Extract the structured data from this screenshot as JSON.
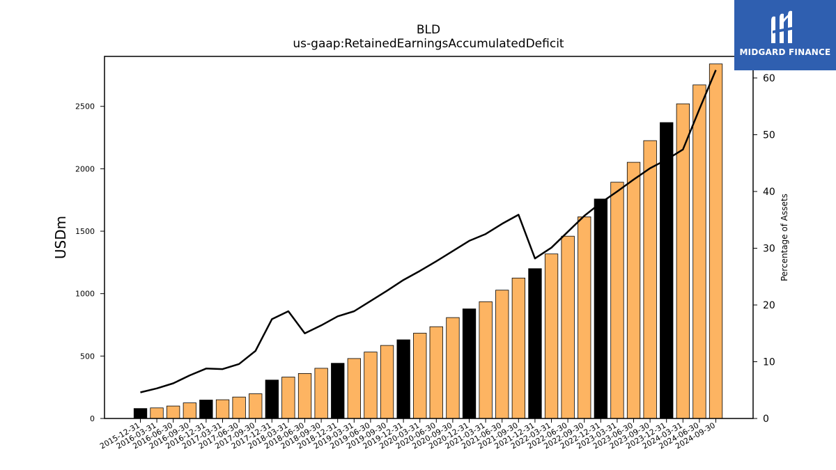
{
  "brand": {
    "name": "MIDGARD FINANCE",
    "color": "#2f5fb0",
    "icon": "midgard-logo-icon"
  },
  "chart_data": {
    "type": "bar",
    "title": "BLD",
    "subtitle": "us-gaap:RetainedEarningsAccumulatedDeficit",
    "ylabel": "USDm",
    "y2label": "Percentage of Assets",
    "ylim": [
      0,
      2900
    ],
    "y2lim": [
      0,
      63.8
    ],
    "yticks": [
      0,
      500,
      1000,
      1500,
      2000,
      2500
    ],
    "y2ticks": [
      0,
      10,
      20,
      30,
      40,
      50,
      60
    ],
    "grid": false,
    "colors": {
      "bar": "#fdb462",
      "bar_fy": "#000000",
      "line": "#000000"
    },
    "categories": [
      "2015-12-31",
      "2016-03-31",
      "2016-06-30",
      "2016-09-30",
      "2016-12-31",
      "2017-03-31",
      "2017-06-30",
      "2017-09-30",
      "2017-12-31",
      "2018-03-31",
      "2018-06-30",
      "2018-09-30",
      "2018-12-31",
      "2019-03-31",
      "2019-06-30",
      "2019-09-30",
      "2019-12-31",
      "2020-03-31",
      "2020-06-30",
      "2020-09-30",
      "2020-12-31",
      "2021-03-31",
      "2021-06-30",
      "2021-09-30",
      "2021-12-31",
      "2022-03-31",
      "2022-06-30",
      "2022-09-30",
      "2022-12-31",
      "2023-03-31",
      "2023-06-30",
      "2023-09-30",
      "2023-12-31",
      "2024-03-31",
      "2024-06-30",
      "2024-09-30"
    ],
    "series": [
      {
        "type": "bar",
        "values": [
          80,
          85,
          100,
          125,
          148,
          150,
          172,
          198,
          308,
          332,
          360,
          402,
          442,
          480,
          532,
          585,
          630,
          683,
          735,
          808,
          878,
          935,
          1028,
          1125,
          1200,
          1318,
          1460,
          1615,
          1758,
          1892,
          2052,
          2225,
          2370,
          2520,
          2672,
          2840
        ],
        "highlight": [
          true,
          false,
          false,
          false,
          true,
          false,
          false,
          false,
          true,
          false,
          false,
          false,
          true,
          false,
          false,
          false,
          true,
          false,
          false,
          false,
          true,
          false,
          false,
          false,
          true,
          false,
          false,
          false,
          true,
          false,
          false,
          false,
          true,
          false,
          false,
          false
        ]
      },
      {
        "type": "line",
        "axis": "right",
        "values": [
          4.6,
          5.3,
          6.2,
          7.6,
          8.8,
          8.7,
          9.6,
          11.9,
          17.5,
          18.9,
          15.0,
          16.4,
          18.0,
          18.9,
          20.7,
          22.5,
          24.4,
          26.0,
          27.7,
          29.5,
          31.3,
          32.5,
          34.3,
          35.9,
          28.2,
          30.1,
          32.9,
          35.7,
          38.0,
          40.0,
          42.1,
          44.1,
          45.6,
          47.4,
          54.5,
          61.4
        ]
      }
    ]
  }
}
